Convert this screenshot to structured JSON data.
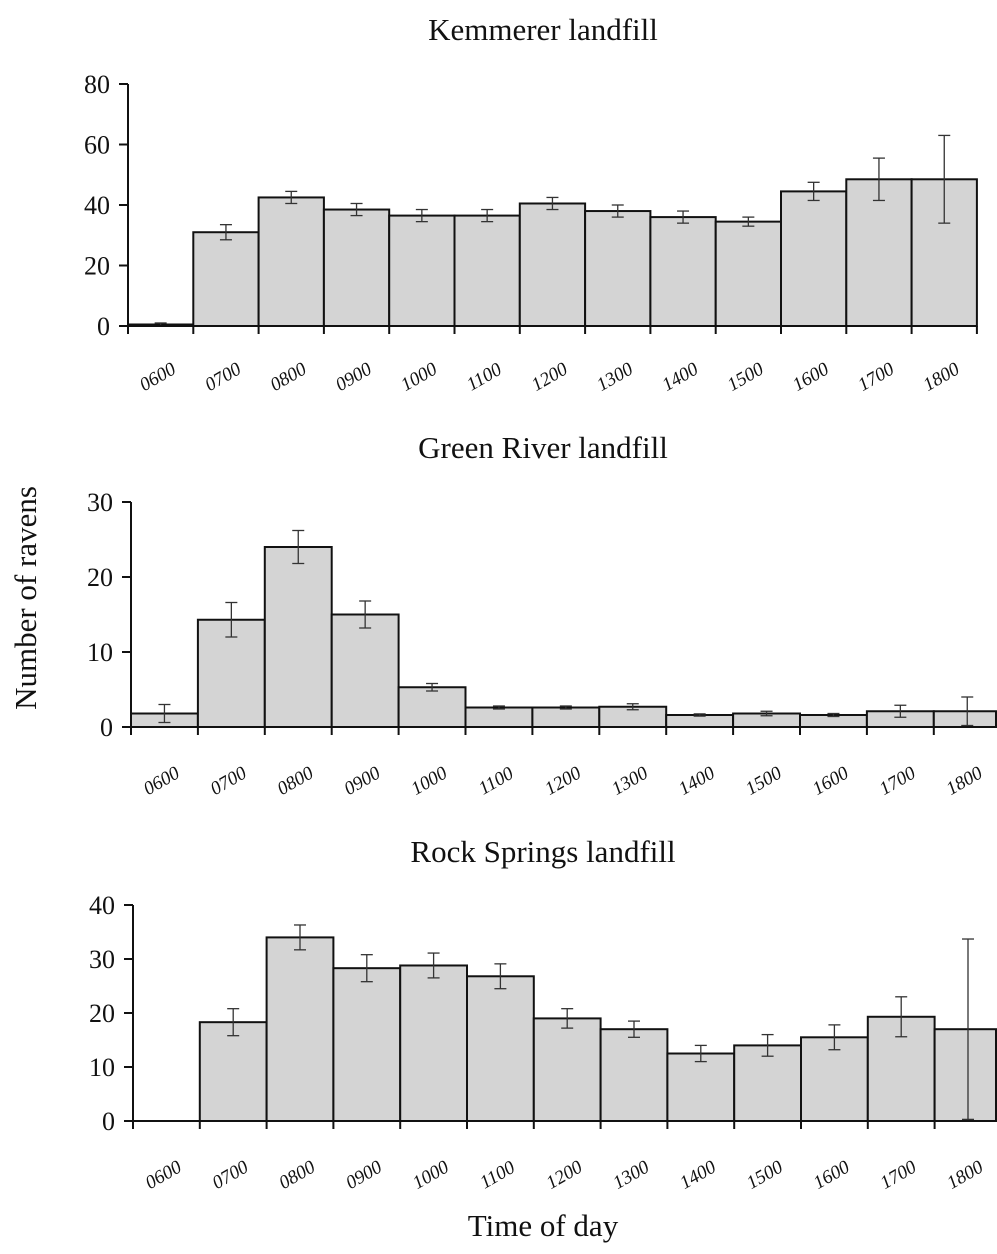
{
  "chart_data": [
    {
      "type": "bar",
      "title": "Kemmerer landfill",
      "categories": [
        "0600",
        "0700",
        "0800",
        "0900",
        "1000",
        "1100",
        "1200",
        "1300",
        "1400",
        "1500",
        "1600",
        "1700",
        "1800"
      ],
      "values": [
        0.5,
        31,
        42.5,
        38.5,
        36.5,
        36.5,
        40.5,
        38,
        36,
        34.5,
        44.5,
        48.5,
        48.5
      ],
      "error": [
        0.5,
        2.5,
        2,
        2,
        2,
        2,
        2,
        2,
        2,
        1.5,
        3,
        7,
        14.5
      ],
      "ylim": [
        0,
        80
      ],
      "yticks": [
        0,
        20,
        40,
        60,
        80
      ],
      "bar_color": "#d4d4d4"
    },
    {
      "type": "bar",
      "title": "Green River landfill",
      "categories": [
        "0600",
        "0700",
        "0800",
        "0900",
        "1000",
        "1100",
        "1200",
        "1300",
        "1400",
        "1500",
        "1600",
        "1700",
        "1800"
      ],
      "values": [
        1.8,
        14.3,
        24,
        15,
        5.3,
        2.6,
        2.6,
        2.7,
        1.6,
        1.8,
        1.6,
        2.1,
        2.1
      ],
      "error": [
        1.2,
        2.3,
        2.2,
        1.8,
        0.5,
        0.2,
        0.2,
        0.4,
        0.15,
        0.3,
        0.2,
        0.8,
        1.9
      ],
      "ylim": [
        0,
        30
      ],
      "yticks": [
        0,
        10,
        20,
        30
      ],
      "bar_color": "#d4d4d4"
    },
    {
      "type": "bar",
      "title": "Rock Springs landfill",
      "categories": [
        "0600",
        "0700",
        "0800",
        "0900",
        "1000",
        "1100",
        "1200",
        "1300",
        "1400",
        "1500",
        "1600",
        "1700",
        "1800"
      ],
      "values": [
        0,
        18.3,
        34,
        28.3,
        28.8,
        26.8,
        19,
        17,
        12.5,
        14,
        15.5,
        19.3,
        17
      ],
      "error": [
        0,
        2.5,
        2.3,
        2.5,
        2.3,
        2.3,
        1.8,
        1.5,
        1.5,
        2,
        2.3,
        3.7,
        16.7
      ],
      "ylim": [
        0,
        40
      ],
      "yticks": [
        0,
        10,
        20,
        30,
        40
      ],
      "bar_color": "#d4d4d4"
    }
  ],
  "ylabel": "Number of ravens",
  "xlabel": "Time of day"
}
